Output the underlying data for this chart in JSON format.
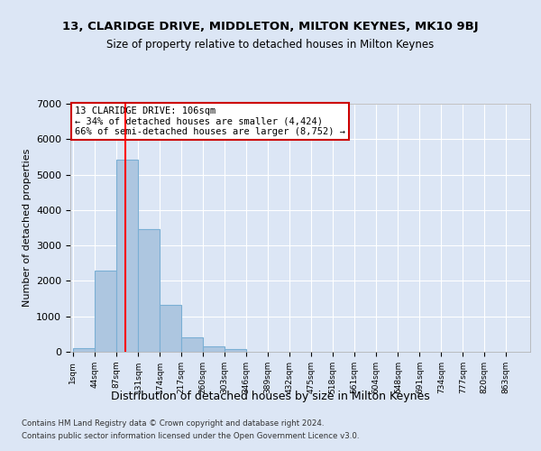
{
  "title1": "13, CLARIDGE DRIVE, MIDDLETON, MILTON KEYNES, MK10 9BJ",
  "title2": "Size of property relative to detached houses in Milton Keynes",
  "xlabel": "Distribution of detached houses by size in Milton Keynes",
  "ylabel": "Number of detached properties",
  "footer1": "Contains HM Land Registry data © Crown copyright and database right 2024.",
  "footer2": "Contains public sector information licensed under the Open Government Licence v3.0.",
  "bar_color": "#adc6e0",
  "bar_edge_color": "#7aafd4",
  "bg_color": "#dce6f5",
  "annotation_text": "13 CLARIDGE DRIVE: 106sqm\n← 34% of detached houses are smaller (4,424)\n66% of semi-detached houses are larger (8,752) →",
  "red_line_x": 106,
  "bin_edges": [
    1,
    44,
    87,
    131,
    174,
    217,
    260,
    303,
    346,
    389,
    432,
    475,
    518,
    561,
    604,
    648,
    691,
    734,
    777,
    820,
    863
  ],
  "bar_heights": [
    100,
    2280,
    5430,
    3450,
    1320,
    400,
    155,
    80,
    0,
    0,
    0,
    0,
    0,
    0,
    0,
    0,
    0,
    0,
    0,
    0
  ],
  "ylim": [
    0,
    7000
  ],
  "yticks": [
    0,
    1000,
    2000,
    3000,
    4000,
    5000,
    6000,
    7000
  ],
  "grid_color": "#ffffff",
  "annotation_box_color": "#ffffff",
  "annotation_box_edge_color": "#cc0000"
}
